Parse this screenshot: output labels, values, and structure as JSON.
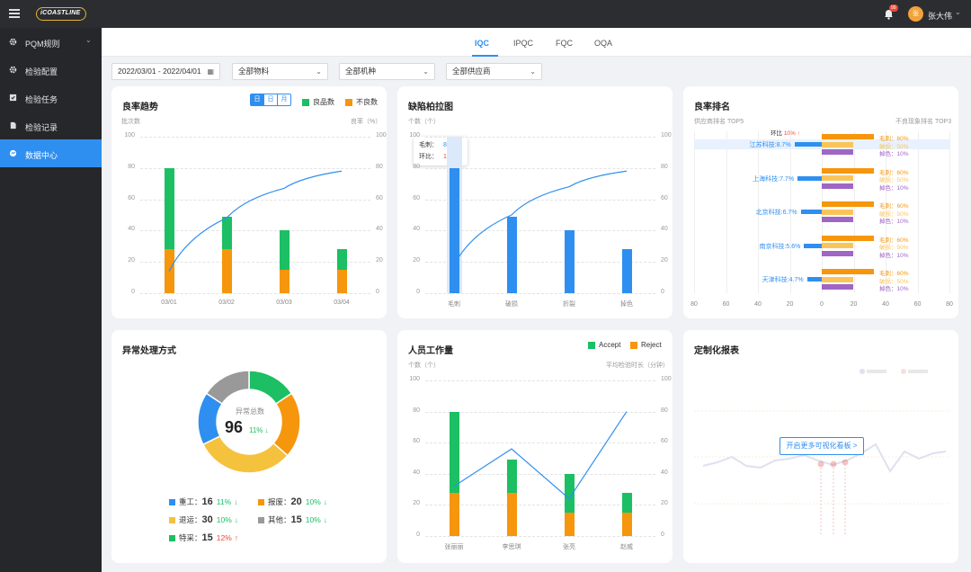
{
  "app": {
    "logo": "iCOASTLINE",
    "notif_count": "99",
    "avatar_text": "张",
    "user": "张大伟"
  },
  "sidebar": {
    "items": [
      {
        "label": "PQM规则"
      },
      {
        "label": "检验配置"
      },
      {
        "label": "检验任务"
      },
      {
        "label": "检验记录"
      },
      {
        "label": "数据中心"
      }
    ]
  },
  "tabs": [
    "IQC",
    "IPQC",
    "FQC",
    "OQA"
  ],
  "filters": {
    "date": "2022/03/01 - 2022/04/01",
    "material": "全部物料",
    "machine": "全部机种",
    "supplier": "全部供应商"
  },
  "yield_trend": {
    "title": "良率趋势",
    "seg": [
      "日",
      "日",
      "月"
    ],
    "legend_good": "良品数",
    "legend_bad": "不良数",
    "yl": "批次数",
    "yr": "良率（%）"
  },
  "defect_pareto": {
    "title": "缺陷柏拉图",
    "yl": "个数（个）",
    "tip_label1": "毛刺",
    "tip_value1": "80",
    "tip_label2": "环比",
    "tip_value2": "10%"
  },
  "yield_rank": {
    "title": "良率排名",
    "left_label": "供应商排名 TOP5",
    "right_label": "不良现象排名 TOP3",
    "hb_label": "环比",
    "hb_value": "10%",
    "suppliers": [
      {
        "name": "江苏科技:8.7%",
        "v": -8.7
      },
      {
        "name": "上海科技:7.7%",
        "v": -7.7
      },
      {
        "name": "北京科技:6.7%",
        "v": -6.7
      },
      {
        "name": "南京科技:5.6%",
        "v": -5.6
      },
      {
        "name": "天津科技:4.7%",
        "v": -4.7
      }
    ],
    "defect_labels": [
      "毛刺：60%",
      "破损：50%",
      "掉色：10%"
    ],
    "xticks": [
      "80",
      "60",
      "40",
      "20",
      "0",
      "20",
      "40",
      "60",
      "80"
    ]
  },
  "exception": {
    "title": "异常处理方式",
    "center_label": "异常总数",
    "total": "96",
    "pct": "11%",
    "items": [
      {
        "name": "重工",
        "val": "16",
        "pct": "11%",
        "dir": "down"
      },
      {
        "name": "报废",
        "val": "20",
        "pct": "10%",
        "dir": "down"
      },
      {
        "name": "退运",
        "val": "30",
        "pct": "10%",
        "dir": "down"
      },
      {
        "name": "其他",
        "val": "15",
        "pct": "10%",
        "dir": "down"
      },
      {
        "name": "特采",
        "val": "15",
        "pct": "12%",
        "dir": "up"
      }
    ]
  },
  "workload": {
    "title": "人员工作量",
    "legend_accept": "Accept",
    "legend_reject": "Reject",
    "yl": "个数（个）",
    "yr": "平均检验时长（分钟）"
  },
  "custom": {
    "title": "定制化报表",
    "button": "开启更多可视化看板 >"
  },
  "chart_data": [
    {
      "type": "bar",
      "title": "良率趋势",
      "categories": [
        "03/01",
        "03/02",
        "03/03",
        "03/04"
      ],
      "series": [
        {
          "name": "良品数",
          "values": [
            52,
            21,
            25,
            13
          ]
        },
        {
          "name": "不良数",
          "values": [
            28,
            28,
            15,
            15
          ]
        }
      ],
      "line": [
        14,
        48,
        67,
        78
      ],
      "ylim": [
        0,
        100
      ],
      "yticks": [
        0,
        20,
        40,
        60,
        80,
        100
      ]
    },
    {
      "type": "bar",
      "title": "缺陷柏拉图",
      "categories": [
        "毛刺",
        "破损",
        "折裂",
        "掉色"
      ],
      "values": [
        80,
        49,
        40,
        28
      ],
      "line": [
        18,
        50,
        68,
        78
      ],
      "ylim": [
        0,
        100
      ],
      "yticks": [
        0,
        20,
        40,
        60,
        80,
        100
      ]
    },
    {
      "type": "bar",
      "title": "人员工作量",
      "categories": [
        "张丽丽",
        "李思琪",
        "张亮",
        "赵威"
      ],
      "series": [
        {
          "name": "Accept",
          "values": [
            52,
            21,
            25,
            13
          ]
        },
        {
          "name": "Reject",
          "values": [
            28,
            28,
            15,
            15
          ]
        }
      ],
      "line": [
        32,
        56,
        24,
        80
      ],
      "ylim": [
        0,
        100
      ],
      "yticks": [
        0,
        20,
        40,
        60,
        80,
        100
      ]
    },
    {
      "type": "pie",
      "title": "异常处理方式",
      "labels": [
        "重工",
        "报废",
        "退运",
        "其他",
        "特采"
      ],
      "values": [
        16,
        20,
        30,
        15,
        15
      ],
      "colors": [
        "#2f8ff0",
        "#f6960d",
        "#f5c23d",
        "#999999",
        "#1cbf63"
      ]
    }
  ]
}
